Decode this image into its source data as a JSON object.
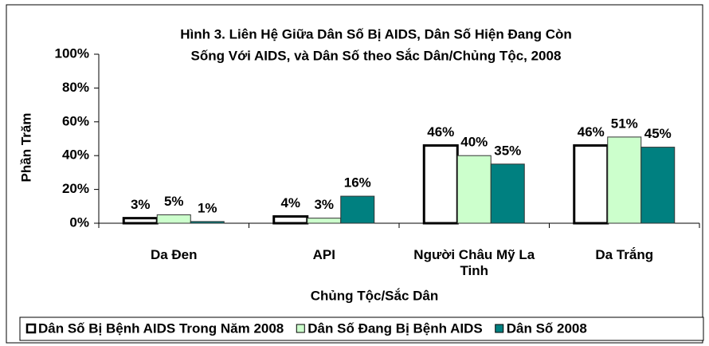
{
  "chart_data": {
    "type": "bar",
    "title": [
      "Hình 3. Liên Hệ Giữa Dân Số Bị AIDS, Dân Số Hiện Đang Còn",
      "Sống Với AIDS, và Dân Số theo Sắc Dân/Chủng Tộc, 2008"
    ],
    "y_label": "Phần Trăm",
    "x_label": "Chủng Tộc/Sắc Dân",
    "categories": [
      "Da Đen",
      "API",
      "Người Châu Mỹ La Tinh",
      "Da Trắng"
    ],
    "series": [
      {
        "name": "Dân Số Bị Bệnh AIDS Trong Năm 2008",
        "color": "#ffffff",
        "values": [
          3,
          4,
          46,
          46
        ],
        "value_labels": [
          "3%",
          "4%",
          "46%",
          "46%"
        ]
      },
      {
        "name": "Dân Số Đang Bị Bệnh AIDS",
        "color": "#ccffcc",
        "values": [
          5,
          3,
          40,
          51
        ],
        "value_labels": [
          "5%",
          "3%",
          "40%",
          "51%"
        ]
      },
      {
        "name": "Dân Số 2008",
        "color": "#008080",
        "values": [
          1,
          16,
          35,
          45
        ],
        "value_labels": [
          "1%",
          "16%",
          "35%",
          "45%"
        ]
      }
    ],
    "ylim": [
      0,
      100
    ],
    "yticks": [
      {
        "value": 0,
        "label": "0%"
      },
      {
        "value": 20,
        "label": "20%"
      },
      {
        "value": 40,
        "label": "40%"
      },
      {
        "value": 60,
        "label": "60%"
      },
      {
        "value": 80,
        "label": "80%"
      },
      {
        "value": 100,
        "label": "100%"
      }
    ],
    "legend": "bottom"
  }
}
